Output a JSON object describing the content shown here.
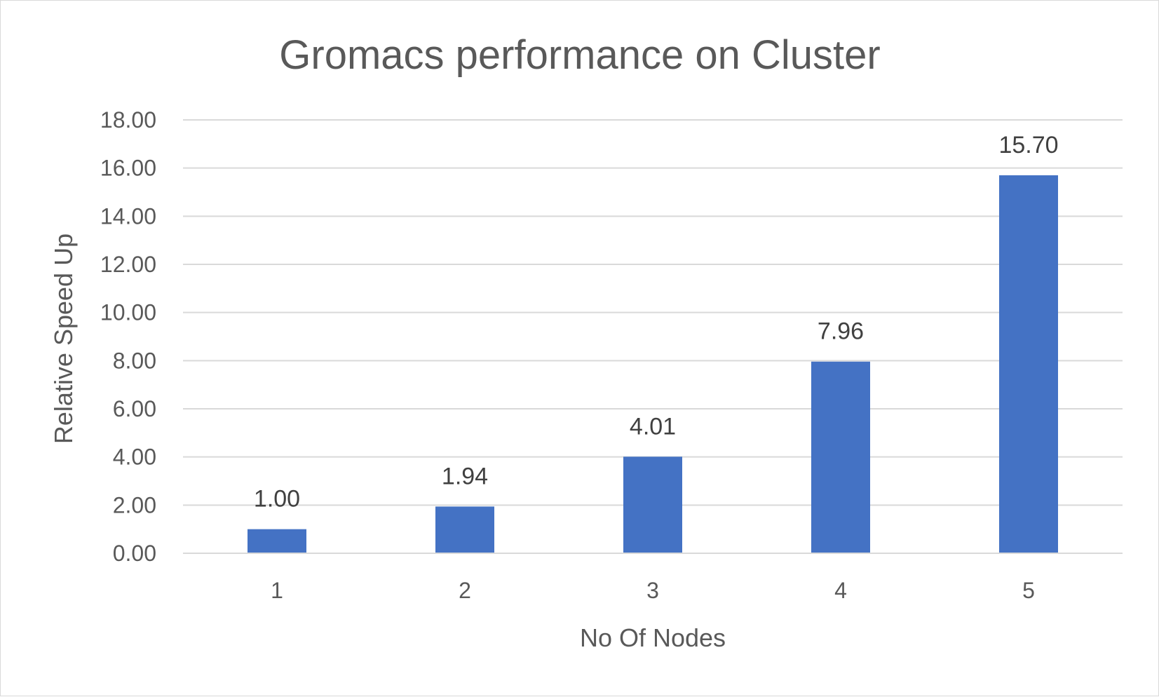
{
  "chart_data": {
    "type": "bar",
    "title": "Gromacs performance on Cluster",
    "xlabel": "No Of Nodes",
    "ylabel": "Relative Speed Up",
    "categories": [
      "1",
      "2",
      "3",
      "4",
      "5"
    ],
    "values": [
      1.0,
      1.94,
      4.01,
      7.96,
      15.7
    ],
    "data_labels": [
      "1.00",
      "1.94",
      "4.01",
      "7.96",
      "15.70"
    ],
    "ylim": [
      0,
      18
    ],
    "yticks": [
      "0.00",
      "2.00",
      "4.00",
      "6.00",
      "8.00",
      "10.00",
      "12.00",
      "14.00",
      "16.00",
      "18.00"
    ],
    "grid": true,
    "legend": "none",
    "bar_color": "#4472c4"
  }
}
